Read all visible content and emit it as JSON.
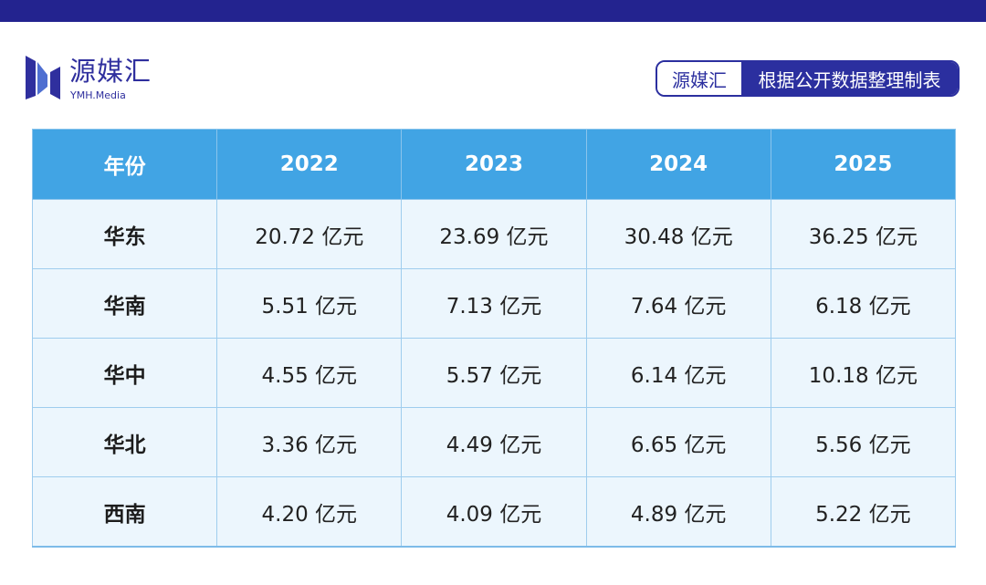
{
  "header": {
    "logo": {
      "name": "源媒汇",
      "sub": "YMH.Media"
    },
    "source_tag": {
      "left": "源媒汇",
      "right": "根据公开数据整理制表"
    }
  },
  "colors": {
    "top_bar": "#23238f",
    "brand": "#2b2f9f",
    "table_header": "#41a4e4",
    "table_cell": "#ecf6fd",
    "table_border": "#9fcdee"
  },
  "table": {
    "columns": [
      "年份",
      "2022",
      "2023",
      "2024",
      "2025"
    ],
    "rows": [
      {
        "label": "华东",
        "values": [
          "20.72 亿元",
          "23.69 亿元",
          "30.48 亿元",
          "36.25 亿元"
        ]
      },
      {
        "label": "华南",
        "values": [
          "5.51 亿元",
          "7.13 亿元",
          "7.64 亿元",
          "6.18 亿元"
        ]
      },
      {
        "label": "华中",
        "values": [
          "4.55 亿元",
          "5.57 亿元",
          "6.14 亿元",
          "10.18 亿元"
        ]
      },
      {
        "label": "华北",
        "values": [
          "3.36 亿元",
          "4.49 亿元",
          "6.65 亿元",
          "5.56 亿元"
        ]
      },
      {
        "label": "西南",
        "values": [
          "4.20 亿元",
          "4.09 亿元",
          "4.89 亿元",
          "5.22 亿元"
        ]
      }
    ]
  }
}
